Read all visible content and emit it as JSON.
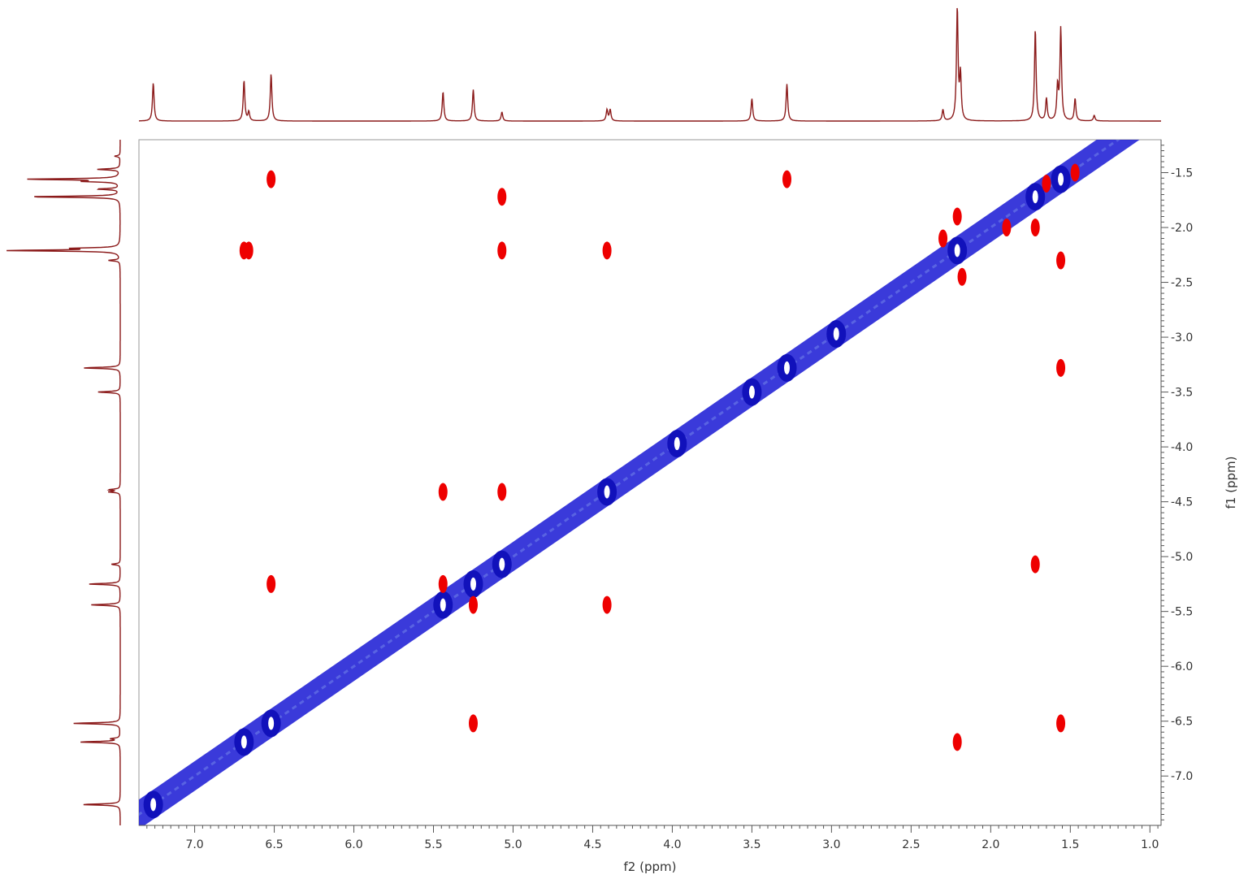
{
  "chart_data": {
    "type": "scatter",
    "subtype": "2D NMR COSY contour plot with 1D projections",
    "xlabel": "f2 (ppm)",
    "ylabel": "f1 (ppm)",
    "xlim": [
      7.35,
      0.93
    ],
    "ylim": [
      1.2,
      7.45
    ],
    "x_reversed": true,
    "y_axis_side": "right",
    "x_ticks": [
      "7.0",
      "6.5",
      "6.0",
      "5.5",
      "5.0",
      "4.5",
      "4.0",
      "3.5",
      "3.0",
      "2.5",
      "2.0",
      "1.5",
      "1.0"
    ],
    "y_ticks": [
      "1.5",
      "2.0",
      "2.5",
      "3.0",
      "3.5",
      "4.0",
      "4.5",
      "5.0",
      "5.5",
      "6.0",
      "6.5",
      "7.0"
    ],
    "grid": false,
    "colors": {
      "diagonal": "#1f1fd6",
      "cross_peaks": "#ee0000",
      "projection": "#8b1a1a",
      "axis": "#555555"
    },
    "series": [
      {
        "values": [
          {
            "x": 7.26,
            "y": 7.26
          },
          {
            "x": 6.69,
            "y": 6.69
          },
          {
            "x": 6.52,
            "y": 6.52
          },
          {
            "x": 5.44,
            "y": 5.44
          },
          {
            "x": 5.25,
            "y": 5.25
          },
          {
            "x": 5.07,
            "y": 5.07
          },
          {
            "x": 4.41,
            "y": 4.41
          },
          {
            "x": 3.97,
            "y": 3.97
          },
          {
            "x": 3.5,
            "y": 3.5
          },
          {
            "x": 3.28,
            "y": 3.28
          },
          {
            "x": 2.97,
            "y": 2.97
          },
          {
            "x": 2.21,
            "y": 2.21
          },
          {
            "x": 1.72,
            "y": 1.72
          },
          {
            "x": 1.56,
            "y": 1.56
          }
        ]
      },
      {
        "values": [
          {
            "x": 6.52,
            "y": 1.56
          },
          {
            "x": 5.07,
            "y": 1.72
          },
          {
            "x": 3.28,
            "y": 1.56
          },
          {
            "x": 6.69,
            "y": 2.21
          },
          {
            "x": 6.66,
            "y": 2.21
          },
          {
            "x": 5.07,
            "y": 2.21
          },
          {
            "x": 4.41,
            "y": 2.21
          },
          {
            "x": 5.44,
            "y": 4.41
          },
          {
            "x": 5.07,
            "y": 4.41
          },
          {
            "x": 6.52,
            "y": 5.25
          },
          {
            "x": 4.41,
            "y": 5.44
          },
          {
            "x": 5.25,
            "y": 6.52
          },
          {
            "x": 2.21,
            "y": 6.69
          },
          {
            "x": 1.56,
            "y": 6.52
          },
          {
            "x": 1.72,
            "y": 5.07
          },
          {
            "x": 1.56,
            "y": 3.28
          },
          {
            "x": 2.3,
            "y": 2.1
          },
          {
            "x": 2.18,
            "y": 2.45
          },
          {
            "x": 2.21,
            "y": 1.9
          },
          {
            "x": 1.72,
            "y": 2.0
          },
          {
            "x": 1.56,
            "y": 2.3
          },
          {
            "x": 1.9,
            "y": 2.0
          },
          {
            "x": 1.47,
            "y": 1.5
          },
          {
            "x": 1.65,
            "y": 1.6
          },
          {
            "x": 5.44,
            "y": 5.25
          },
          {
            "x": 5.25,
            "y": 5.44
          }
        ]
      }
    ],
    "projection_peaks": [
      {
        "ppm": 7.26,
        "height": 0.34
      },
      {
        "ppm": 6.69,
        "height": 0.36
      },
      {
        "ppm": 6.66,
        "height": 0.08
      },
      {
        "ppm": 6.52,
        "height": 0.42
      },
      {
        "ppm": 5.44,
        "height": 0.26
      },
      {
        "ppm": 5.25,
        "height": 0.28
      },
      {
        "ppm": 5.07,
        "height": 0.08
      },
      {
        "ppm": 4.41,
        "height": 0.1
      },
      {
        "ppm": 4.39,
        "height": 0.1
      },
      {
        "ppm": 3.5,
        "height": 0.2
      },
      {
        "ppm": 3.28,
        "height": 0.33
      },
      {
        "ppm": 2.3,
        "height": 0.1
      },
      {
        "ppm": 2.21,
        "height": 1.0
      },
      {
        "ppm": 2.19,
        "height": 0.4
      },
      {
        "ppm": 1.72,
        "height": 0.82
      },
      {
        "ppm": 1.65,
        "height": 0.2
      },
      {
        "ppm": 1.56,
        "height": 0.82
      },
      {
        "ppm": 1.58,
        "height": 0.3
      },
      {
        "ppm": 1.47,
        "height": 0.2
      },
      {
        "ppm": 1.35,
        "height": 0.05
      }
    ]
  }
}
